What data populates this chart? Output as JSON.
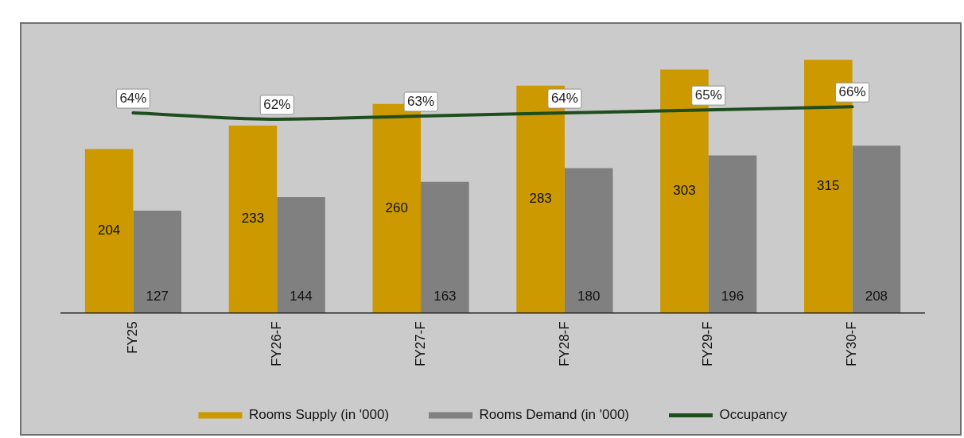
{
  "chart_data": {
    "type": "bar",
    "categories": [
      "FY25",
      "FY26-F",
      "FY27-F",
      "FY28-F",
      "FY29-F",
      "FY30-F"
    ],
    "series": [
      {
        "name": "Rooms Supply (in '000)",
        "color": "#cc9900",
        "values": [
          204,
          233,
          260,
          283,
          303,
          315
        ],
        "value_labels": [
          "204",
          "233",
          "260",
          "283",
          "303",
          "315"
        ]
      },
      {
        "name": "Rooms Demand (in '000)",
        "color": "#808080",
        "values": [
          127,
          144,
          163,
          180,
          196,
          208
        ],
        "value_labels": [
          "127",
          "144",
          "163",
          "180",
          "196",
          "208"
        ]
      },
      {
        "name": "Occupancy",
        "type": "line",
        "axis": "y2",
        "color": "#1e4d1e",
        "values": [
          64,
          62,
          63,
          64,
          65,
          66
        ],
        "value_labels": [
          "64%",
          "62%",
          "63%",
          "64%",
          "65%",
          "66%"
        ]
      }
    ],
    "tick_labels": "x",
    "grid": false,
    "legend": "bottom"
  }
}
